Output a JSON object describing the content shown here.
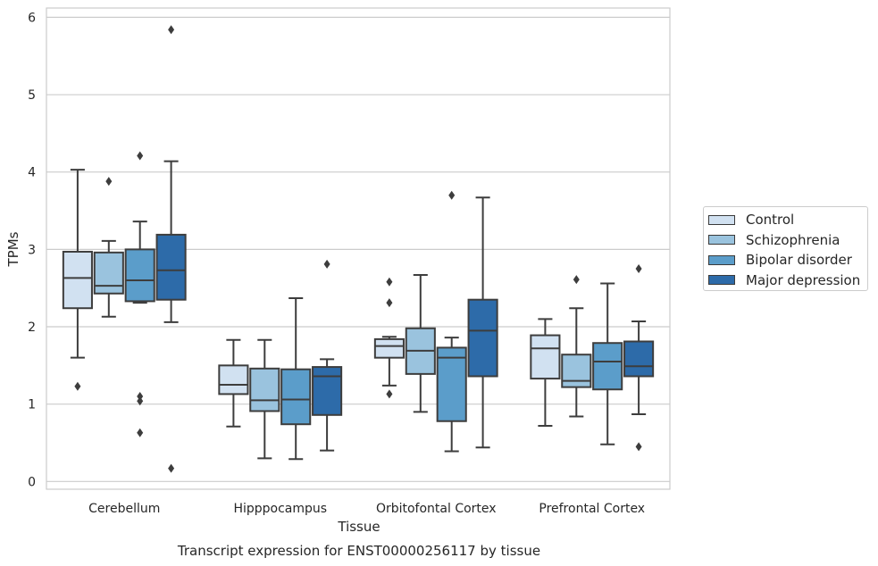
{
  "chart_data": {
    "type": "box",
    "title": "Transcript expression for ENST00000256117 by tissue",
    "xlabel": "Tissue",
    "ylabel": "TPMs",
    "ylim": [
      -0.1,
      6.12
    ],
    "yticks": [
      0,
      1,
      2,
      3,
      4,
      5,
      6
    ],
    "categories": [
      "Cerebellum",
      "Hipppocampus",
      "Orbitofontal Cortex",
      "Prefrontal Cortex"
    ],
    "grid": true,
    "legend_position": "right",
    "series": [
      {
        "name": "Control",
        "color": "#d1e1f1",
        "boxes": [
          {
            "whislo": 1.6,
            "q1": 2.24,
            "med": 2.63,
            "q3": 2.97,
            "whishi": 4.03,
            "fliers": [
              1.23
            ]
          },
          {
            "whislo": 0.71,
            "q1": 1.13,
            "med": 1.25,
            "q3": 1.5,
            "whishi": 1.83,
            "fliers": []
          },
          {
            "whislo": 1.24,
            "q1": 1.6,
            "med": 1.75,
            "q3": 1.84,
            "whishi": 1.87,
            "fliers": [
              2.58,
              2.31,
              1.13
            ]
          },
          {
            "whislo": 0.72,
            "q1": 1.33,
            "med": 1.72,
            "q3": 1.89,
            "whishi": 2.1,
            "fliers": []
          }
        ]
      },
      {
        "name": "Schizophrenia",
        "color": "#9ac3de",
        "boxes": [
          {
            "whislo": 2.13,
            "q1": 2.43,
            "med": 2.53,
            "q3": 2.96,
            "whishi": 3.11,
            "fliers": [
              3.88
            ]
          },
          {
            "whislo": 0.3,
            "q1": 0.91,
            "med": 1.05,
            "q3": 1.46,
            "whishi": 1.83,
            "fliers": []
          },
          {
            "whislo": 0.9,
            "q1": 1.39,
            "med": 1.69,
            "q3": 1.98,
            "whishi": 2.67,
            "fliers": []
          },
          {
            "whislo": 0.84,
            "q1": 1.22,
            "med": 1.3,
            "q3": 1.64,
            "whishi": 2.24,
            "fliers": [
              2.61
            ]
          }
        ]
      },
      {
        "name": "Bipolar disorder",
        "color": "#5b9dca",
        "boxes": [
          {
            "whislo": 2.31,
            "q1": 2.33,
            "med": 2.6,
            "q3": 3.0,
            "whishi": 3.36,
            "fliers": [
              4.21,
              1.1,
              1.04,
              0.63
            ]
          },
          {
            "whislo": 0.29,
            "q1": 0.74,
            "med": 1.06,
            "q3": 1.45,
            "whishi": 2.37,
            "fliers": []
          },
          {
            "whislo": 0.39,
            "q1": 0.78,
            "med": 1.6,
            "q3": 1.73,
            "whishi": 1.86,
            "fliers": [
              3.7
            ]
          },
          {
            "whislo": 0.48,
            "q1": 1.19,
            "med": 1.55,
            "q3": 1.79,
            "whishi": 2.56,
            "fliers": []
          }
        ]
      },
      {
        "name": "Major depression",
        "color": "#2d6ba9",
        "boxes": [
          {
            "whislo": 2.06,
            "q1": 2.35,
            "med": 2.73,
            "q3": 3.19,
            "whishi": 4.14,
            "fliers": [
              5.84,
              0.17
            ]
          },
          {
            "whislo": 0.4,
            "q1": 0.86,
            "med": 1.36,
            "q3": 1.48,
            "whishi": 1.58,
            "fliers": [
              2.81
            ]
          },
          {
            "whislo": 0.44,
            "q1": 1.36,
            "med": 1.95,
            "q3": 2.35,
            "whishi": 3.67,
            "fliers": []
          },
          {
            "whislo": 0.87,
            "q1": 1.36,
            "med": 1.49,
            "q3": 1.81,
            "whishi": 2.07,
            "fliers": [
              2.75,
              0.45
            ]
          }
        ]
      }
    ]
  }
}
